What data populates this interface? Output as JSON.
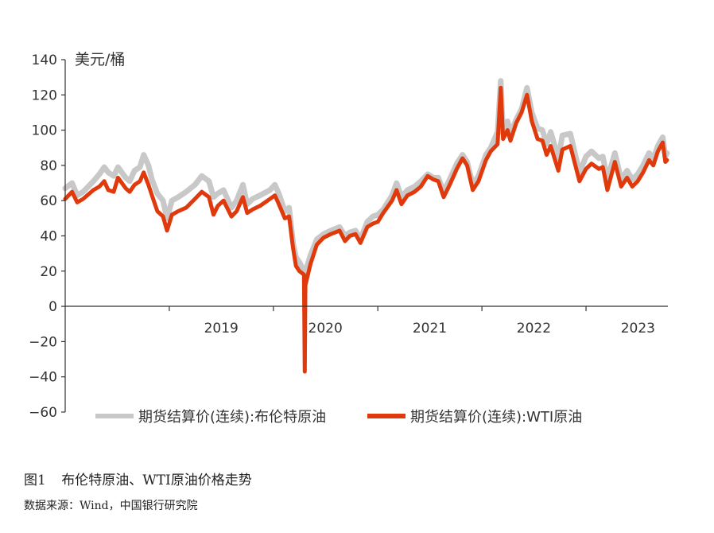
{
  "chart_data": {
    "type": "line",
    "unit_label": "美元/桶",
    "ylim": [
      -60,
      140
    ],
    "y_ticks": [
      -60,
      -40,
      -20,
      0,
      20,
      40,
      60,
      80,
      100,
      120,
      140
    ],
    "y_tick_labels": [
      "−60",
      "−40",
      "−20",
      "0",
      "20",
      "40",
      "60",
      "80",
      "100",
      "120",
      "140"
    ],
    "xlim": [
      "2018-01-01",
      "2023-10-15"
    ],
    "x_ticks": [
      "2019-01-01",
      "2020-01-01",
      "2021-01-01",
      "2022-01-01",
      "2023-01-01"
    ],
    "x_tick_labels": [
      "2019",
      "2020",
      "2021",
      "2022",
      "2023"
    ],
    "grid": false,
    "legend_position": "bottom",
    "series": [
      {
        "name": "期货结算价(连续):布伦特原油",
        "color": "#c8c8c8",
        "points": [
          [
            "2018-01-01",
            67
          ],
          [
            "2018-01-25",
            70
          ],
          [
            "2018-02-12",
            63
          ],
          [
            "2018-03-05",
            65
          ],
          [
            "2018-04-10",
            71
          ],
          [
            "2018-05-01",
            75
          ],
          [
            "2018-05-18",
            79
          ],
          [
            "2018-06-01",
            76
          ],
          [
            "2018-06-20",
            74
          ],
          [
            "2018-07-05",
            79
          ],
          [
            "2018-08-01",
            73
          ],
          [
            "2018-08-15",
            71
          ],
          [
            "2018-09-01",
            77
          ],
          [
            "2018-09-20",
            79
          ],
          [
            "2018-10-03",
            86
          ],
          [
            "2018-10-20",
            80
          ],
          [
            "2018-11-01",
            72
          ],
          [
            "2018-11-20",
            64
          ],
          [
            "2018-12-10",
            60
          ],
          [
            "2018-12-24",
            50
          ],
          [
            "2019-01-10",
            60
          ],
          [
            "2019-02-01",
            62
          ],
          [
            "2019-03-01",
            65
          ],
          [
            "2019-04-01",
            69
          ],
          [
            "2019-04-25",
            74
          ],
          [
            "2019-05-20",
            71
          ],
          [
            "2019-06-05",
            62
          ],
          [
            "2019-06-20",
            64
          ],
          [
            "2019-07-10",
            66
          ],
          [
            "2019-08-07",
            56
          ],
          [
            "2019-08-25",
            60
          ],
          [
            "2019-09-16",
            69
          ],
          [
            "2019-10-01",
            58
          ],
          [
            "2019-10-20",
            61
          ],
          [
            "2019-11-15",
            63
          ],
          [
            "2019-12-20",
            66
          ],
          [
            "2020-01-06",
            69
          ],
          [
            "2020-01-20",
            64
          ],
          [
            "2020-02-10",
            54
          ],
          [
            "2020-02-25",
            56
          ],
          [
            "2020-03-10",
            36
          ],
          [
            "2020-03-20",
            28
          ],
          [
            "2020-04-01",
            25
          ],
          [
            "2020-04-21",
            19
          ],
          [
            "2020-05-10",
            29
          ],
          [
            "2020-06-01",
            38
          ],
          [
            "2020-06-25",
            41
          ],
          [
            "2020-07-20",
            43
          ],
          [
            "2020-08-20",
            45
          ],
          [
            "2020-09-08",
            40
          ],
          [
            "2020-09-25",
            42
          ],
          [
            "2020-10-15",
            43
          ],
          [
            "2020-11-01",
            38
          ],
          [
            "2020-11-25",
            48
          ],
          [
            "2020-12-15",
            51
          ],
          [
            "2021-01-01",
            52
          ],
          [
            "2021-01-20",
            55
          ],
          [
            "2021-02-20",
            63
          ],
          [
            "2021-03-08",
            70
          ],
          [
            "2021-03-25",
            62
          ],
          [
            "2021-04-15",
            66
          ],
          [
            "2021-05-10",
            68
          ],
          [
            "2021-06-01",
            71
          ],
          [
            "2021-06-25",
            75
          ],
          [
            "2021-07-15",
            73
          ],
          [
            "2021-08-01",
            73
          ],
          [
            "2021-08-20",
            65
          ],
          [
            "2021-09-10",
            72
          ],
          [
            "2021-10-05",
            81
          ],
          [
            "2021-10-25",
            86
          ],
          [
            "2021-11-10",
            82
          ],
          [
            "2021-11-30",
            69
          ],
          [
            "2021-12-20",
            74
          ],
          [
            "2022-01-15",
            86
          ],
          [
            "2022-02-01",
            90
          ],
          [
            "2022-02-25",
            99
          ],
          [
            "2022-03-08",
            128
          ],
          [
            "2022-03-16",
            98
          ],
          [
            "2022-04-01",
            105
          ],
          [
            "2022-04-11",
            98
          ],
          [
            "2022-05-01",
            106
          ],
          [
            "2022-05-20",
            112
          ],
          [
            "2022-06-08",
            124
          ],
          [
            "2022-06-25",
            110
          ],
          [
            "2022-07-15",
            101
          ],
          [
            "2022-08-01",
            100
          ],
          [
            "2022-08-16",
            92
          ],
          [
            "2022-08-30",
            99
          ],
          [
            "2022-09-26",
            84
          ],
          [
            "2022-10-10",
            97
          ],
          [
            "2022-11-07",
            98
          ],
          [
            "2022-12-09",
            76
          ],
          [
            "2023-01-01",
            85
          ],
          [
            "2023-01-20",
            88
          ],
          [
            "2023-02-15",
            84
          ],
          [
            "2023-03-01",
            85
          ],
          [
            "2023-03-17",
            72
          ],
          [
            "2023-04-12",
            87
          ],
          [
            "2023-05-04",
            72
          ],
          [
            "2023-05-25",
            77
          ],
          [
            "2023-06-12",
            72
          ],
          [
            "2023-07-01",
            75
          ],
          [
            "2023-07-20",
            80
          ],
          [
            "2023-08-10",
            87
          ],
          [
            "2023-08-25",
            84
          ],
          [
            "2023-09-10",
            91
          ],
          [
            "2023-09-27",
            96
          ],
          [
            "2023-10-06",
            85
          ],
          [
            "2023-10-12",
            87
          ]
        ]
      },
      {
        "name": "期货结算价(连续):WTI原油",
        "color": "#e03a0c",
        "points": [
          [
            "2018-01-01",
            61
          ],
          [
            "2018-01-25",
            65
          ],
          [
            "2018-02-12",
            59
          ],
          [
            "2018-03-05",
            61
          ],
          [
            "2018-04-10",
            66
          ],
          [
            "2018-05-01",
            68
          ],
          [
            "2018-05-18",
            71
          ],
          [
            "2018-06-01",
            66
          ],
          [
            "2018-06-20",
            65
          ],
          [
            "2018-07-05",
            73
          ],
          [
            "2018-08-01",
            67
          ],
          [
            "2018-08-15",
            65
          ],
          [
            "2018-09-01",
            69
          ],
          [
            "2018-09-20",
            71
          ],
          [
            "2018-10-03",
            76
          ],
          [
            "2018-10-20",
            69
          ],
          [
            "2018-11-01",
            63
          ],
          [
            "2018-11-20",
            54
          ],
          [
            "2018-12-10",
            51
          ],
          [
            "2018-12-24",
            43
          ],
          [
            "2019-01-10",
            52
          ],
          [
            "2019-02-01",
            54
          ],
          [
            "2019-03-01",
            56
          ],
          [
            "2019-04-01",
            61
          ],
          [
            "2019-04-25",
            65
          ],
          [
            "2019-05-20",
            62
          ],
          [
            "2019-06-05",
            52
          ],
          [
            "2019-06-20",
            57
          ],
          [
            "2019-07-10",
            60
          ],
          [
            "2019-08-07",
            51
          ],
          [
            "2019-08-25",
            54
          ],
          [
            "2019-09-16",
            62
          ],
          [
            "2019-10-01",
            53
          ],
          [
            "2019-10-20",
            55
          ],
          [
            "2019-11-15",
            57
          ],
          [
            "2019-12-20",
            61
          ],
          [
            "2020-01-06",
            63
          ],
          [
            "2020-01-20",
            58
          ],
          [
            "2020-02-10",
            50
          ],
          [
            "2020-02-25",
            51
          ],
          [
            "2020-03-10",
            33
          ],
          [
            "2020-03-20",
            23
          ],
          [
            "2020-04-01",
            20
          ],
          [
            "2020-04-17",
            18
          ],
          [
            "2020-04-20",
            -37
          ],
          [
            "2020-04-22",
            12
          ],
          [
            "2020-05-10",
            24
          ],
          [
            "2020-06-01",
            35
          ],
          [
            "2020-06-25",
            39
          ],
          [
            "2020-07-20",
            41
          ],
          [
            "2020-08-20",
            43
          ],
          [
            "2020-09-08",
            37
          ],
          [
            "2020-09-25",
            40
          ],
          [
            "2020-10-15",
            41
          ],
          [
            "2020-11-01",
            36
          ],
          [
            "2020-11-25",
            45
          ],
          [
            "2020-12-15",
            47
          ],
          [
            "2021-01-01",
            48
          ],
          [
            "2021-01-20",
            53
          ],
          [
            "2021-02-20",
            60
          ],
          [
            "2021-03-08",
            66
          ],
          [
            "2021-03-25",
            58
          ],
          [
            "2021-04-15",
            63
          ],
          [
            "2021-05-10",
            65
          ],
          [
            "2021-06-01",
            68
          ],
          [
            "2021-06-25",
            74
          ],
          [
            "2021-07-15",
            72
          ],
          [
            "2021-08-01",
            71
          ],
          [
            "2021-08-20",
            62
          ],
          [
            "2021-09-10",
            69
          ],
          [
            "2021-10-05",
            78
          ],
          [
            "2021-10-25",
            84
          ],
          [
            "2021-11-10",
            80
          ],
          [
            "2021-11-30",
            66
          ],
          [
            "2021-12-20",
            71
          ],
          [
            "2022-01-15",
            83
          ],
          [
            "2022-02-01",
            88
          ],
          [
            "2022-02-25",
            92
          ],
          [
            "2022-03-08",
            124
          ],
          [
            "2022-03-16",
            95
          ],
          [
            "2022-04-01",
            100
          ],
          [
            "2022-04-11",
            94
          ],
          [
            "2022-05-01",
            104
          ],
          [
            "2022-05-20",
            110
          ],
          [
            "2022-06-08",
            120
          ],
          [
            "2022-06-25",
            105
          ],
          [
            "2022-07-15",
            95
          ],
          [
            "2022-08-01",
            94
          ],
          [
            "2022-08-16",
            86
          ],
          [
            "2022-08-30",
            91
          ],
          [
            "2022-09-26",
            77
          ],
          [
            "2022-10-10",
            89
          ],
          [
            "2022-11-07",
            91
          ],
          [
            "2022-12-09",
            71
          ],
          [
            "2023-01-01",
            78
          ],
          [
            "2023-01-20",
            81
          ],
          [
            "2023-02-15",
            78
          ],
          [
            "2023-03-01",
            79
          ],
          [
            "2023-03-17",
            66
          ],
          [
            "2023-04-12",
            82
          ],
          [
            "2023-05-04",
            68
          ],
          [
            "2023-05-25",
            73
          ],
          [
            "2023-06-12",
            68
          ],
          [
            "2023-07-01",
            71
          ],
          [
            "2023-07-20",
            76
          ],
          [
            "2023-08-10",
            83
          ],
          [
            "2023-08-25",
            80
          ],
          [
            "2023-09-10",
            88
          ],
          [
            "2023-09-27",
            93
          ],
          [
            "2023-10-06",
            82
          ],
          [
            "2023-10-12",
            83
          ]
        ]
      }
    ]
  },
  "caption": {
    "figure_label": "图1",
    "text": "布伦特原油、WTI原油价格走势"
  },
  "source": "数据来源：Wind，中国银行研究院"
}
